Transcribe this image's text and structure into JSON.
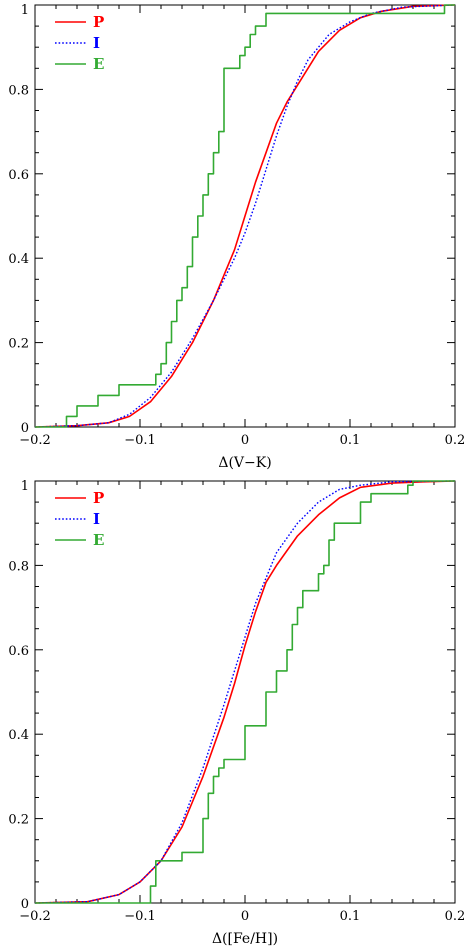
{
  "chart_data": [
    {
      "type": "line",
      "xlabel": "Δ(V−K)",
      "ylabel": "",
      "xlim": [
        -0.2,
        0.2
      ],
      "ylim": [
        0,
        1
      ],
      "xticks": [
        -0.2,
        -0.1,
        0,
        0.1,
        0.2
      ],
      "xtick_labels": [
        "−0.2",
        "−0.1",
        "0",
        "0.1",
        "0.2"
      ],
      "yticks": [
        0,
        0.2,
        0.4,
        0.6,
        0.8,
        1
      ],
      "ytick_labels": [
        "0",
        "0.2",
        "0.4",
        "0.6",
        "0.8",
        "1"
      ],
      "legend_position": "top-left",
      "series": [
        {
          "name": "P",
          "color": "#ff0000",
          "dash": "solid",
          "step": false,
          "x": [
            -0.2,
            -0.16,
            -0.13,
            -0.11,
            -0.09,
            -0.07,
            -0.05,
            -0.03,
            -0.02,
            -0.01,
            0.0,
            0.01,
            0.02,
            0.03,
            0.04,
            0.05,
            0.06,
            0.07,
            0.09,
            0.11,
            0.13,
            0.16,
            0.2
          ],
          "y": [
            0,
            0.003,
            0.01,
            0.025,
            0.06,
            0.12,
            0.2,
            0.3,
            0.36,
            0.42,
            0.5,
            0.58,
            0.65,
            0.72,
            0.77,
            0.81,
            0.85,
            0.89,
            0.94,
            0.97,
            0.985,
            0.997,
            1
          ]
        },
        {
          "name": "I",
          "color": "#0000ff",
          "dash": "dotted",
          "step": false,
          "x": [
            -0.2,
            -0.16,
            -0.13,
            -0.11,
            -0.09,
            -0.07,
            -0.05,
            -0.03,
            -0.01,
            0.0,
            0.01,
            0.02,
            0.03,
            0.04,
            0.05,
            0.06,
            0.08,
            0.1,
            0.12,
            0.15,
            0.2
          ],
          "y": [
            0,
            0.003,
            0.01,
            0.03,
            0.07,
            0.13,
            0.21,
            0.3,
            0.4,
            0.46,
            0.53,
            0.61,
            0.69,
            0.76,
            0.82,
            0.87,
            0.93,
            0.96,
            0.98,
            0.995,
            1
          ]
        },
        {
          "name": "E",
          "color": "#33aa33",
          "dash": "solid",
          "step": true,
          "x": [
            -0.2,
            -0.18,
            -0.17,
            -0.16,
            -0.14,
            -0.12,
            -0.1,
            -0.085,
            -0.08,
            -0.075,
            -0.07,
            -0.065,
            -0.06,
            -0.055,
            -0.05,
            -0.045,
            -0.04,
            -0.035,
            -0.03,
            -0.025,
            -0.02,
            -0.01,
            -0.005,
            0.0,
            0.005,
            0.01,
            0.02,
            0.05,
            0.12,
            0.19,
            0.2
          ],
          "y": [
            0,
            0,
            0.025,
            0.05,
            0.075,
            0.1,
            0.1,
            0.125,
            0.15,
            0.2,
            0.25,
            0.3,
            0.33,
            0.38,
            0.45,
            0.5,
            0.55,
            0.6,
            0.65,
            0.7,
            0.85,
            0.85,
            0.88,
            0.9,
            0.93,
            0.95,
            0.98,
            0.98,
            0.98,
            1.0,
            1.0
          ]
        }
      ]
    },
    {
      "type": "line",
      "xlabel": "Δ([Fe/H])",
      "ylabel": "",
      "xlim": [
        -0.2,
        0.2
      ],
      "ylim": [
        0,
        1
      ],
      "xticks": [
        -0.2,
        -0.1,
        0,
        0.1,
        0.2
      ],
      "xtick_labels": [
        "−0.2",
        "−0.1",
        "0",
        "0.1",
        "0.2"
      ],
      "yticks": [
        0,
        0.2,
        0.4,
        0.6,
        0.8,
        1
      ],
      "ytick_labels": [
        "0",
        "0.2",
        "0.4",
        "0.6",
        "0.8",
        "1"
      ],
      "legend_position": "top-left",
      "series": [
        {
          "name": "P",
          "color": "#ff0000",
          "dash": "solid",
          "step": false,
          "x": [
            -0.2,
            -0.15,
            -0.12,
            -0.1,
            -0.08,
            -0.06,
            -0.04,
            -0.02,
            -0.01,
            0.0,
            0.01,
            0.02,
            0.03,
            0.05,
            0.07,
            0.09,
            0.11,
            0.14,
            0.17,
            0.2
          ],
          "y": [
            0,
            0.003,
            0.02,
            0.05,
            0.1,
            0.18,
            0.3,
            0.44,
            0.52,
            0.61,
            0.69,
            0.76,
            0.8,
            0.87,
            0.92,
            0.96,
            0.985,
            0.995,
            0.998,
            1
          ]
        },
        {
          "name": "I",
          "color": "#0000ff",
          "dash": "dotted",
          "step": false,
          "x": [
            -0.2,
            -0.15,
            -0.12,
            -0.1,
            -0.08,
            -0.06,
            -0.04,
            -0.02,
            0.0,
            0.01,
            0.02,
            0.03,
            0.05,
            0.07,
            0.09,
            0.11,
            0.14,
            0.2
          ],
          "y": [
            0,
            0.003,
            0.02,
            0.05,
            0.1,
            0.19,
            0.32,
            0.47,
            0.63,
            0.71,
            0.77,
            0.83,
            0.9,
            0.95,
            0.98,
            0.99,
            0.998,
            1
          ]
        },
        {
          "name": "E",
          "color": "#33aa33",
          "dash": "solid",
          "step": true,
          "x": [
            -0.2,
            -0.095,
            -0.09,
            -0.085,
            -0.06,
            -0.04,
            -0.035,
            -0.03,
            -0.025,
            -0.02,
            -0.01,
            0.0,
            0.02,
            0.03,
            0.04,
            0.045,
            0.05,
            0.055,
            0.06,
            0.07,
            0.075,
            0.08,
            0.085,
            0.09,
            0.1,
            0.11,
            0.12,
            0.155,
            0.16,
            0.2
          ],
          "y": [
            0,
            0,
            0.04,
            0.1,
            0.12,
            0.2,
            0.26,
            0.3,
            0.32,
            0.34,
            0.34,
            0.42,
            0.5,
            0.55,
            0.6,
            0.66,
            0.7,
            0.74,
            0.74,
            0.78,
            0.8,
            0.86,
            0.9,
            0.9,
            0.9,
            0.95,
            0.97,
            0.99,
            1.0,
            1.0
          ]
        }
      ]
    }
  ]
}
